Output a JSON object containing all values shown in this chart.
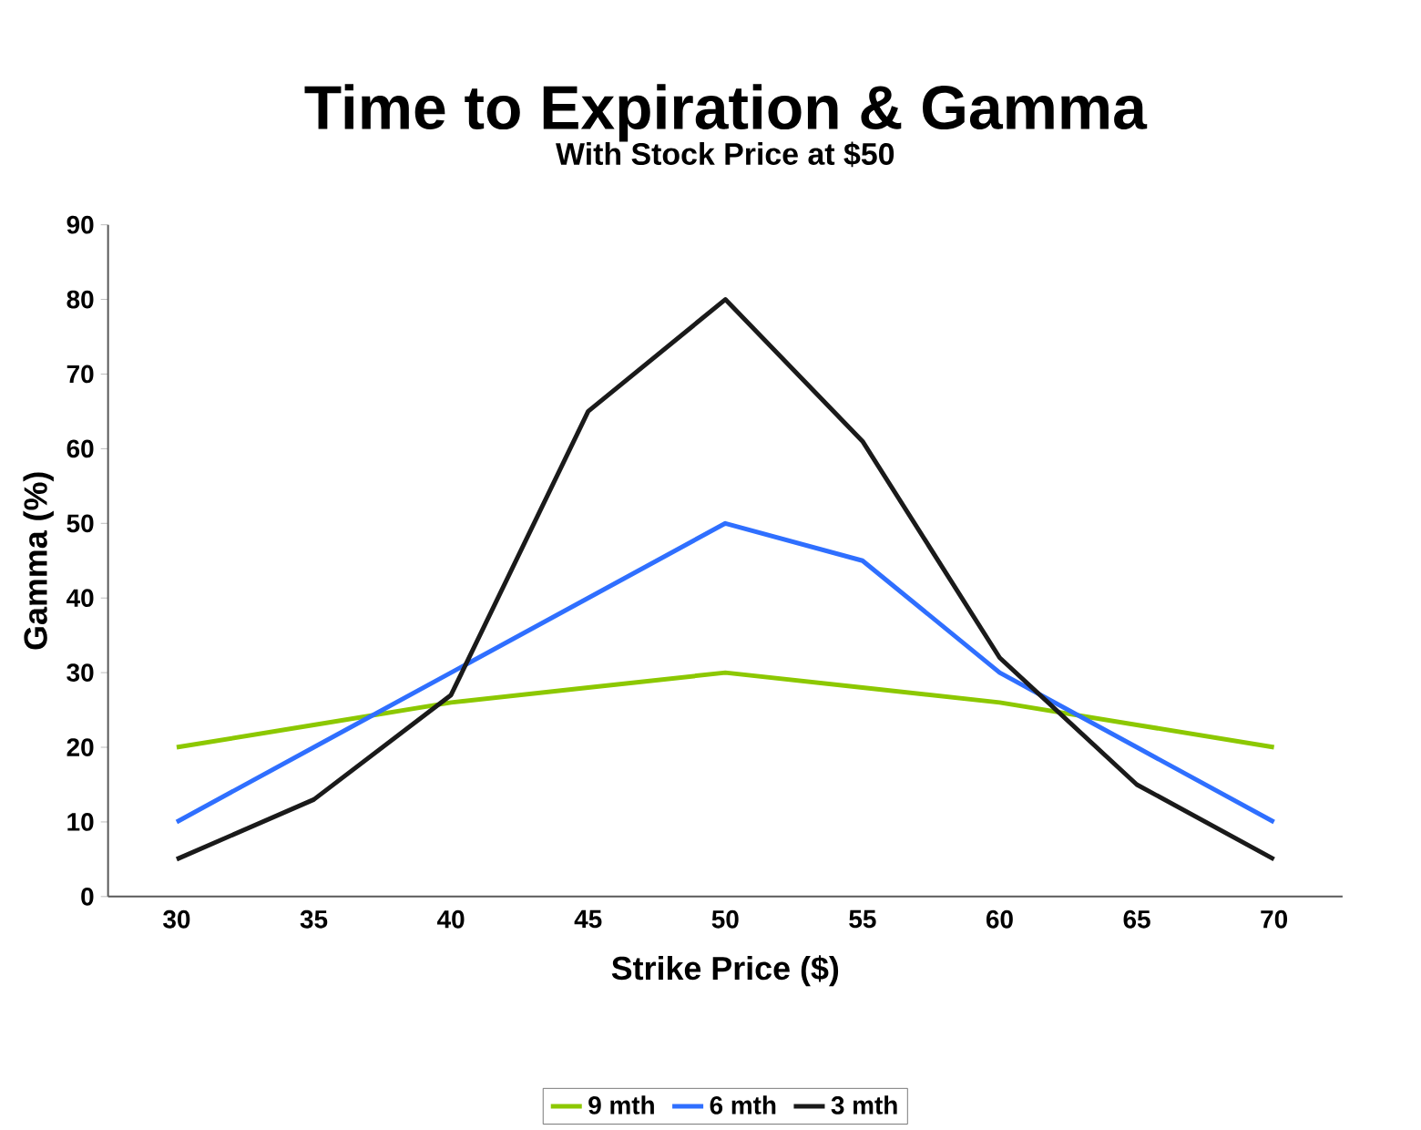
{
  "chart_data": {
    "type": "line",
    "title": "Time to Expiration & Gamma",
    "subtitle": "With Stock Price at $50",
    "xlabel": "Strike Price ($)",
    "ylabel": "Gamma (%)",
    "categories": [
      "30",
      "35",
      "40",
      "45",
      "50",
      "55",
      "60",
      "65",
      "70"
    ],
    "series": [
      {
        "name": "9 mth",
        "color": "#8cc800",
        "values": [
          20,
          23,
          26,
          28,
          30,
          28,
          26,
          23,
          20
        ]
      },
      {
        "name": "6 mth",
        "color": "#2f6fff",
        "values": [
          10,
          20,
          30,
          40,
          50,
          45,
          30,
          20,
          10
        ]
      },
      {
        "name": "3 mth",
        "color": "#1a1a1a",
        "values": [
          5,
          13,
          27,
          65,
          80,
          61,
          32,
          15,
          5
        ]
      }
    ],
    "ylim": [
      0,
      90
    ],
    "yticks": [
      0,
      10,
      20,
      30,
      40,
      50,
      60,
      70,
      80,
      90
    ],
    "grid": false,
    "legend": "bottom",
    "marker": "none",
    "line_style": "solid"
  }
}
